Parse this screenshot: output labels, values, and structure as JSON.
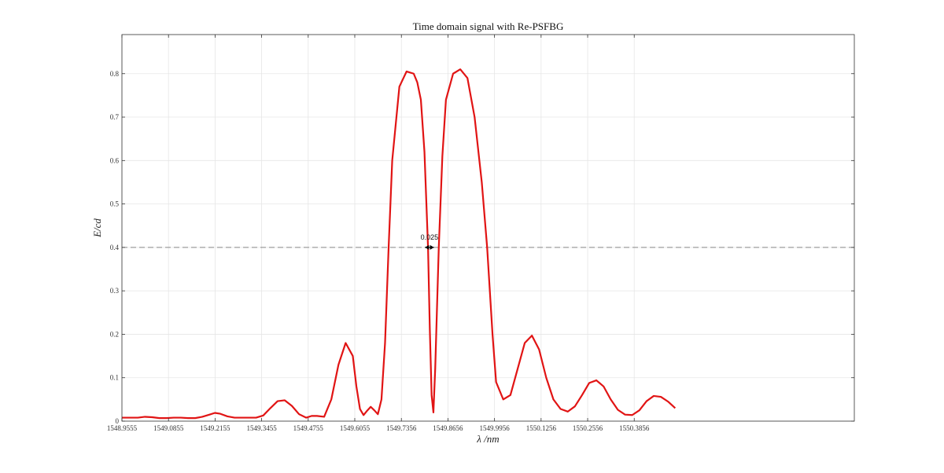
{
  "chart_data": {
    "type": "line",
    "title": "Time domain signal with Re-PSFBG",
    "xlabel": "λ /nm",
    "ylabel": "E/cd",
    "xlim": [
      1548.9555,
      1551.0
    ],
    "ylim": [
      0,
      0.89
    ],
    "xticks": [
      "1548.9555",
      "1549.0855",
      "1549.2155",
      "1549.3455",
      "1549.4755",
      "1549.6055",
      "1549.7356",
      "1549.8656",
      "1549.9956",
      "1550.1256",
      "1550.2556",
      "1550.3856"
    ],
    "xtick_values": [
      1548.9555,
      1549.0855,
      1549.2155,
      1549.3455,
      1549.4755,
      1549.6055,
      1549.7356,
      1549.8656,
      1549.9956,
      1550.1256,
      1550.2556,
      1550.3856
    ],
    "yticks": [
      "0",
      "0.1",
      "0.2",
      "0.3",
      "0.4",
      "0.5",
      "0.6",
      "0.7",
      "0.8"
    ],
    "ytick_values": [
      0,
      0.1,
      0.2,
      0.3,
      0.4,
      0.5,
      0.6,
      0.7,
      0.8
    ],
    "grid": true,
    "threshold": {
      "y": 0.4,
      "style": "dashed",
      "color": "#888888"
    },
    "annotation": {
      "text": "0.025",
      "x_start": 1549.8015,
      "x_end": 1549.8265,
      "y": 0.4
    },
    "series": [
      {
        "color": "#e11414",
        "x": [
          1548.9555,
          1548.98,
          1549.0,
          1549.02,
          1549.04,
          1549.06,
          1549.08,
          1549.1,
          1549.12,
          1549.14,
          1549.16,
          1549.18,
          1549.2,
          1549.215,
          1549.23,
          1549.25,
          1549.27,
          1549.29,
          1549.31,
          1549.33,
          1549.35,
          1549.37,
          1549.39,
          1549.41,
          1549.43,
          1549.45,
          1549.47,
          1549.485,
          1549.5,
          1549.52,
          1549.54,
          1549.56,
          1549.58,
          1549.6,
          1549.61,
          1549.62,
          1549.63,
          1549.64,
          1549.65,
          1549.66,
          1549.67,
          1549.68,
          1549.69,
          1549.7,
          1549.71,
          1549.73,
          1549.75,
          1549.77,
          1549.78,
          1549.79,
          1549.8,
          1549.81,
          1549.815,
          1549.82,
          1549.825,
          1549.83,
          1549.84,
          1549.85,
          1549.86,
          1549.88,
          1549.9,
          1549.92,
          1549.94,
          1549.96,
          1549.975,
          1549.99,
          1550.0,
          1550.02,
          1550.04,
          1550.06,
          1550.08,
          1550.1,
          1550.12,
          1550.14,
          1550.16,
          1550.18,
          1550.2,
          1550.22,
          1550.24,
          1550.26,
          1550.28,
          1550.3,
          1550.32,
          1550.34,
          1550.36,
          1550.38,
          1550.4,
          1550.42,
          1550.44,
          1550.46,
          1550.48,
          1550.5
        ],
        "y": [
          0.008,
          0.008,
          0.008,
          0.01,
          0.009,
          0.007,
          0.007,
          0.008,
          0.008,
          0.007,
          0.007,
          0.01,
          0.015,
          0.019,
          0.017,
          0.011,
          0.008,
          0.008,
          0.008,
          0.008,
          0.013,
          0.03,
          0.046,
          0.048,
          0.035,
          0.016,
          0.008,
          0.012,
          0.012,
          0.01,
          0.05,
          0.13,
          0.18,
          0.15,
          0.08,
          0.028,
          0.014,
          0.024,
          0.033,
          0.025,
          0.016,
          0.05,
          0.18,
          0.4,
          0.6,
          0.77,
          0.805,
          0.8,
          0.78,
          0.74,
          0.62,
          0.4,
          0.21,
          0.06,
          0.02,
          0.12,
          0.4,
          0.61,
          0.74,
          0.8,
          0.81,
          0.79,
          0.7,
          0.55,
          0.4,
          0.2,
          0.09,
          0.05,
          0.06,
          0.12,
          0.18,
          0.197,
          0.165,
          0.1,
          0.05,
          0.028,
          0.022,
          0.034,
          0.06,
          0.088,
          0.094,
          0.08,
          0.05,
          0.026,
          0.015,
          0.014,
          0.025,
          0.046,
          0.058,
          0.056,
          0.045,
          0.03
        ]
      }
    ]
  }
}
